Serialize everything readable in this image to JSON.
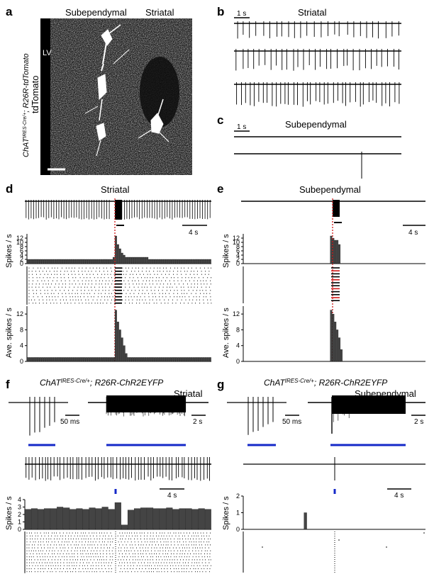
{
  "panels": {
    "a": {
      "label": "a",
      "region_subependymal": "Subependymal",
      "region_striatal": "Striatal",
      "lv": "LV",
      "genotype_prefix": "ChAT",
      "genotype_sup": "IRES-Cre/+",
      "genotype_suffix": "; R26R-tdTomato",
      "reporter": "tdTomato"
    },
    "b": {
      "label": "b",
      "title": "Striatal",
      "scale": "1 s"
    },
    "c": {
      "label": "c",
      "title": "Subependymal",
      "scale": "1 s"
    },
    "d": {
      "label": "d",
      "title": "Striatal",
      "scale": "4 s",
      "ylabel_rate": "Spikes / s",
      "ylabel_avg": "Ave. spikes / s",
      "rate_ticks": [
        "0",
        "2",
        "4",
        "6",
        "8",
        "10",
        "12"
      ],
      "avg_ticks": [
        "0",
        "4",
        "8",
        "12"
      ]
    },
    "e": {
      "label": "e",
      "title": "Subependymal",
      "scale": "4 s",
      "ylabel_rate": "Spikes / s",
      "ylabel_avg": "Ave. spikes / s",
      "rate_ticks": [
        "0",
        "2",
        "4",
        "6",
        "8",
        "10",
        "12"
      ],
      "avg_ticks": [
        "0",
        "4",
        "8",
        "12"
      ]
    },
    "f": {
      "label": "f",
      "genotype_prefix": "ChAT",
      "genotype_sup": "IRES-Cre/+",
      "genotype_suffix": "; R26R-ChR2EYFP",
      "title": "Striatal",
      "scale_ms": "50 ms",
      "scale_s": "2 s",
      "scale_4s": "4 s",
      "ylabel": "Spikes / s",
      "ticks": [
        "0",
        "1",
        "2",
        "3",
        "4"
      ]
    },
    "g": {
      "label": "g",
      "genotype_prefix": "ChAT",
      "genotype_sup": "IRES-Cre/+",
      "genotype_suffix": "; R26R-ChR2EYFP",
      "title": "Subependymal",
      "scale_ms": "50 ms",
      "scale_s": "2 s",
      "scale_4s": "4 s",
      "ylabel": "Spikes / s",
      "ticks": [
        "0",
        "1",
        "2"
      ]
    }
  },
  "colors": {
    "light_stimulus": "#1428c8",
    "onset_marker": "#d01818",
    "bar_fill": "#444444"
  },
  "chart_data": [
    {
      "panel": "d",
      "type": "bar",
      "ylabel": "Spikes / s",
      "ylim": [
        0,
        14
      ],
      "values": [
        2,
        2,
        2,
        2,
        2,
        2,
        2,
        2,
        2,
        2,
        2,
        2,
        2,
        2,
        2,
        2,
        2,
        2,
        2,
        2,
        2,
        2,
        2,
        2,
        2,
        2,
        2,
        2,
        2,
        2,
        2,
        2,
        2,
        2,
        2,
        2,
        2,
        2,
        2,
        2,
        2,
        3,
        13,
        9,
        7,
        5,
        4,
        3,
        3,
        3,
        3,
        3,
        3,
        3,
        3,
        3,
        3,
        3,
        2,
        2,
        2,
        2,
        2,
        2,
        2,
        2,
        2,
        2,
        2,
        2,
        2,
        2,
        2,
        2,
        2,
        2,
        2,
        2,
        2,
        2,
        2,
        2,
        2,
        2,
        2,
        2,
        2,
        2
      ]
    },
    {
      "panel": "d",
      "type": "bar",
      "ylabel": "Ave. spikes / s",
      "ylim": [
        0,
        14
      ],
      "values": [
        1,
        1,
        1,
        1,
        1,
        1,
        1,
        1,
        1,
        1,
        1,
        1,
        1,
        1,
        1,
        1,
        1,
        1,
        1,
        1,
        1,
        1,
        1,
        1,
        1,
        1,
        1,
        1,
        1,
        1,
        1,
        1,
        1,
        1,
        1,
        1,
        1,
        1,
        1,
        1,
        1,
        1,
        13,
        10,
        8,
        6,
        4,
        2,
        1,
        1,
        1,
        1,
        1,
        1,
        1,
        1,
        1,
        1,
        1,
        1,
        1,
        1,
        1,
        1,
        1,
        1,
        1,
        1,
        1,
        1,
        1,
        1,
        1,
        1,
        1,
        1,
        1,
        1,
        1,
        1,
        1,
        1,
        1,
        1,
        1,
        1,
        1,
        1
      ]
    },
    {
      "panel": "e",
      "type": "bar",
      "ylabel": "Spikes / s",
      "ylim": [
        0,
        14
      ],
      "values": [
        0,
        0,
        0,
        0,
        0,
        0,
        0,
        0,
        0,
        0,
        0,
        0,
        0,
        0,
        0,
        0,
        0,
        0,
        0,
        0,
        0,
        0,
        0,
        0,
        0,
        0,
        0,
        0,
        0,
        0,
        0,
        0,
        0,
        0,
        0,
        0,
        0,
        0,
        0,
        0,
        0,
        0,
        13,
        12,
        11,
        11,
        9,
        0,
        0,
        0,
        0,
        0,
        0,
        0,
        0,
        0,
        0,
        0,
        0,
        0,
        0,
        0,
        0,
        0,
        0,
        0,
        0,
        0,
        0,
        0,
        0,
        0,
        0,
        0,
        0,
        0,
        0,
        0,
        0,
        0,
        0,
        0,
        0,
        0,
        0,
        0,
        0,
        0
      ]
    },
    {
      "panel": "e",
      "type": "bar",
      "ylabel": "Ave. spikes / s",
      "ylim": [
        0,
        14
      ],
      "values": [
        0,
        0,
        0,
        0,
        0,
        0,
        0,
        0,
        0,
        0,
        0,
        0,
        0,
        0,
        0,
        0,
        0,
        0,
        0,
        0,
        0,
        0,
        0,
        0,
        0,
        0,
        0,
        0,
        0,
        0,
        0,
        0,
        0,
        0,
        0,
        0,
        0,
        0,
        0,
        0,
        0,
        0,
        13,
        12,
        10,
        8,
        6,
        3,
        0,
        0,
        0,
        0,
        0,
        0,
        0,
        0,
        0,
        0,
        0,
        0,
        0,
        0,
        0,
        0,
        0,
        0,
        0,
        0,
        0,
        0,
        0,
        0,
        0,
        0,
        0,
        0,
        0,
        0,
        0,
        0,
        0,
        0,
        0,
        0,
        0,
        0,
        0,
        0
      ]
    },
    {
      "panel": "f",
      "type": "bar",
      "ylabel": "Spikes / s",
      "ylim": [
        0,
        4
      ],
      "values": [
        2.7,
        2.8,
        2.7,
        2.8,
        2.8,
        3.0,
        2.9,
        2.7,
        2.8,
        2.7,
        2.9,
        2.8,
        3.0,
        2.7,
        3.6,
        0.6,
        2.6,
        2.8,
        2.9,
        2.9,
        2.8,
        2.8,
        2.9,
        2.7,
        2.8,
        2.8,
        2.7,
        2.8,
        2.7
      ]
    },
    {
      "panel": "g",
      "type": "bar",
      "ylabel": "Spikes / s",
      "ylim": [
        0,
        2
      ],
      "values": [
        0,
        0,
        0,
        0,
        0,
        0,
        0,
        0,
        0,
        0,
        0,
        0,
        0,
        0,
        0,
        0,
        0,
        0,
        0,
        0,
        1,
        0,
        0,
        0,
        0,
        0,
        0,
        0,
        0,
        0,
        0,
        0,
        0,
        0,
        0,
        0,
        0,
        0,
        0,
        0,
        0,
        0,
        0,
        0,
        0,
        0,
        0,
        0,
        0,
        0,
        0,
        0,
        0,
        0,
        0,
        0,
        0,
        0,
        0,
        0
      ]
    }
  ]
}
